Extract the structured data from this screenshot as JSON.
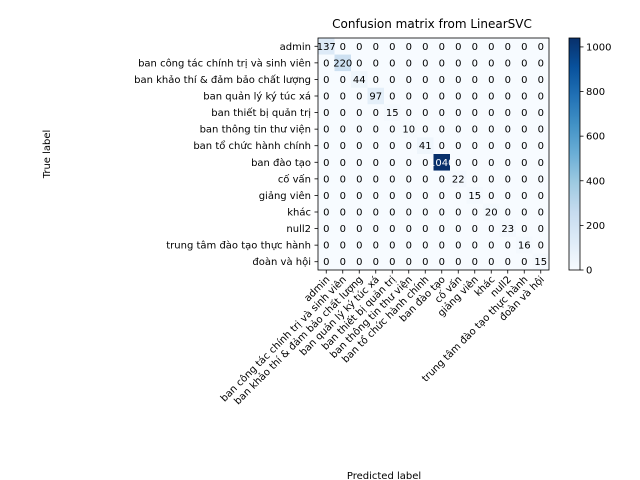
{
  "chart_data": {
    "type": "heatmap",
    "title": "Confusion matrix from LinearSVC",
    "xlabel": "Predicted label",
    "ylabel": "True label",
    "labels": [
      "admin",
      "ban công tác chính trị và sinh viên",
      "ban khảo thí & đảm bảo chất lượng",
      "ban quản lý ký túc xá",
      "ban thiết bị quản trị",
      "ban thông tin thư viện",
      "ban tổ chức hành chính",
      "ban đào tạo",
      "cố vấn",
      "giảng viên",
      "khác",
      "null2",
      "trung tâm đào tạo thực hành",
      "đoàn và hội"
    ],
    "matrix": [
      [
        137,
        0,
        0,
        0,
        0,
        0,
        0,
        0,
        0,
        0,
        0,
        0,
        0,
        0
      ],
      [
        0,
        220,
        0,
        0,
        0,
        0,
        0,
        0,
        0,
        0,
        0,
        0,
        0,
        0
      ],
      [
        0,
        0,
        44,
        0,
        0,
        0,
        0,
        0,
        0,
        0,
        0,
        0,
        0,
        0
      ],
      [
        0,
        0,
        0,
        97,
        0,
        0,
        0,
        0,
        0,
        0,
        0,
        0,
        0,
        0
      ],
      [
        0,
        0,
        0,
        0,
        15,
        0,
        0,
        0,
        0,
        0,
        0,
        0,
        0,
        0
      ],
      [
        0,
        0,
        0,
        0,
        0,
        10,
        0,
        0,
        0,
        0,
        0,
        0,
        0,
        0
      ],
      [
        0,
        0,
        0,
        0,
        0,
        0,
        41,
        0,
        0,
        0,
        0,
        0,
        0,
        0
      ],
      [
        0,
        0,
        0,
        0,
        0,
        0,
        0,
        1040,
        0,
        0,
        0,
        0,
        0,
        0
      ],
      [
        0,
        0,
        0,
        0,
        0,
        0,
        0,
        0,
        22,
        0,
        0,
        0,
        0,
        0
      ],
      [
        0,
        0,
        0,
        0,
        0,
        0,
        0,
        0,
        0,
        15,
        0,
        0,
        0,
        0
      ],
      [
        0,
        0,
        0,
        0,
        0,
        0,
        0,
        0,
        0,
        0,
        20,
        0,
        0,
        0
      ],
      [
        0,
        0,
        0,
        0,
        0,
        0,
        0,
        0,
        0,
        0,
        0,
        23,
        0,
        0
      ],
      [
        0,
        0,
        0,
        0,
        0,
        0,
        0,
        0,
        0,
        0,
        0,
        0,
        16,
        0
      ],
      [
        0,
        0,
        0,
        0,
        0,
        0,
        0,
        0,
        0,
        0,
        0,
        0,
        0,
        15
      ]
    ],
    "colorbar": {
      "colormap": "Blues",
      "range": [
        0,
        1040
      ],
      "ticks": [
        0,
        200,
        400,
        600,
        800,
        1000
      ]
    }
  }
}
